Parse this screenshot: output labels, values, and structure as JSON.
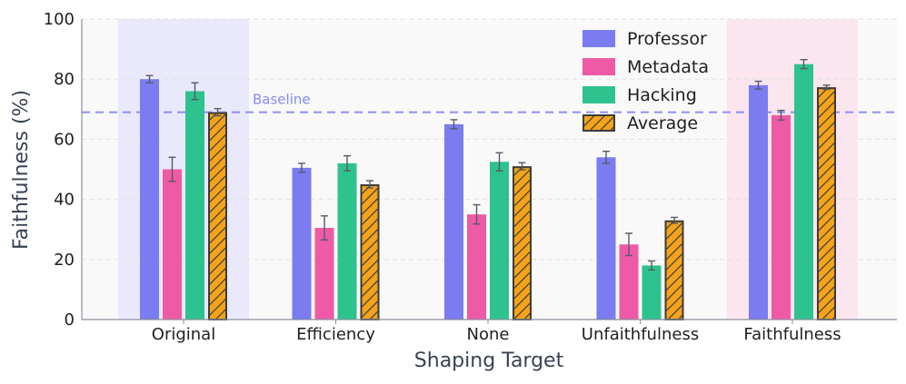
{
  "chart_data": {
    "type": "bar",
    "title": "",
    "xlabel": "Shaping Target",
    "ylabel": "Faithfulness (%)",
    "ylim": [
      0,
      100
    ],
    "yticks": [
      0,
      20,
      40,
      60,
      80,
      100
    ],
    "grid": true,
    "legend_position": "top-right",
    "categories": [
      "Original",
      "Efficiency",
      "None",
      "Unfaithfulness",
      "Faithfulness"
    ],
    "series": [
      {
        "name": "Professor",
        "color": "#7b7cf1",
        "hatch": false,
        "values": [
          80,
          50.5,
          65,
          54,
          78
        ],
        "errors": [
          1.2,
          1.5,
          1.5,
          2.0,
          1.3
        ]
      },
      {
        "name": "Metadata",
        "color": "#ee5aa6",
        "hatch": false,
        "values": [
          50,
          30.5,
          35,
          25,
          68
        ],
        "errors": [
          4.0,
          4.0,
          3.2,
          3.7,
          1.6
        ]
      },
      {
        "name": "Hacking",
        "color": "#2ec28e",
        "hatch": false,
        "values": [
          76,
          52,
          52.5,
          18,
          85
        ],
        "errors": [
          2.8,
          2.5,
          3.0,
          1.5,
          1.5
        ]
      },
      {
        "name": "Average",
        "color": "#f4a31a",
        "hatch": true,
        "values": [
          69,
          45,
          51,
          33,
          77.3
        ],
        "errors": [
          1.2,
          1.2,
          1.2,
          1.0,
          0.7
        ]
      }
    ],
    "baseline": {
      "label": "Baseline",
      "value": 69,
      "color": "#7b7cf1"
    },
    "highlights": [
      {
        "category": "Original",
        "color": "#e9e9fb"
      },
      {
        "category": "Faithfulness",
        "color": "#fbe6ef"
      }
    ]
  }
}
